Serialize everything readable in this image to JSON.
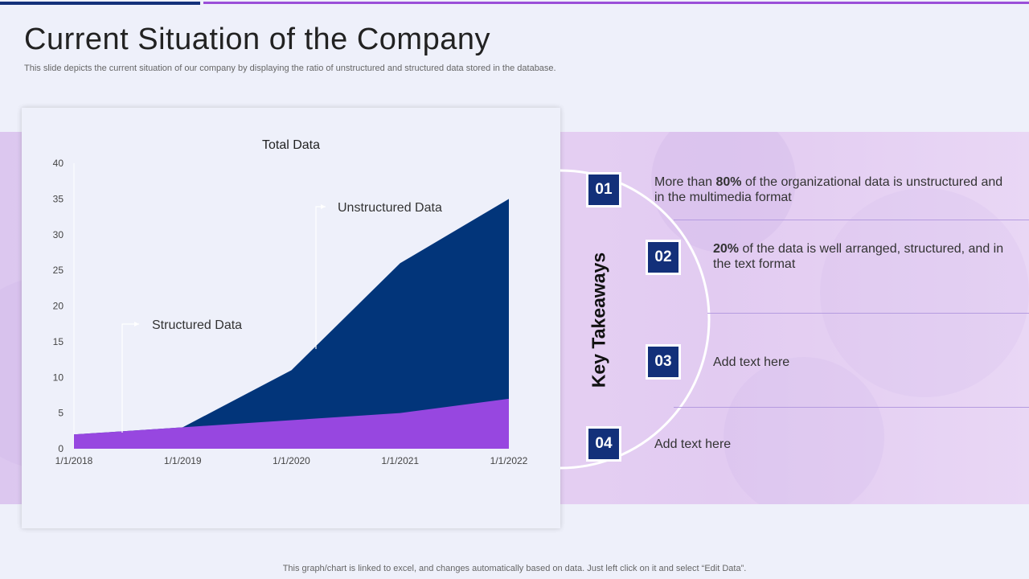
{
  "slide": {
    "title": "Current Situation of the Company",
    "subtitle": "This slide depicts the current situation of our company by displaying the ratio of unstructured and structured data stored in the database.",
    "footer": "This graph/chart is linked to excel,  and changes automatically based on data. Just left click on it and select “Edit Data”."
  },
  "chart_data": {
    "type": "area",
    "title": "Total Data",
    "categories": [
      "1/1/2018",
      "1/1/2019",
      "1/1/2020",
      "1/1/2021",
      "1/1/2022"
    ],
    "series": [
      {
        "name": "Structured Data",
        "values": [
          2,
          3,
          4,
          5,
          7
        ],
        "color": "#9747e0"
      },
      {
        "name": "Unstructured Data",
        "values": [
          2,
          3,
          11,
          26,
          35
        ],
        "color": "#02357a"
      }
    ],
    "ylim": [
      0,
      40
    ],
    "yticks": [
      0,
      5,
      10,
      15,
      20,
      25,
      30,
      35,
      40
    ],
    "annotations": [
      {
        "label": "Structured Data"
      },
      {
        "label": "Unstructured  Data"
      }
    ]
  },
  "takeaways": {
    "heading": "Key Takeaways",
    "items": [
      {
        "num": "01",
        "bold": "",
        "pre": "More than ",
        "strong": "80%",
        "rest": " of the organizational data is unstructured  and in the multimedia format"
      },
      {
        "num": "02",
        "pre": "",
        "strong": "20%",
        "rest": " of the data is well arranged, structured,  and in the text format"
      },
      {
        "num": "03",
        "pre": "Add text here",
        "strong": "",
        "rest": ""
      },
      {
        "num": "04",
        "pre": "Add text here",
        "strong": "",
        "rest": ""
      }
    ]
  },
  "colors": {
    "navy": "#13307a",
    "purple": "#9747e0",
    "band": "#e2cbf1"
  }
}
